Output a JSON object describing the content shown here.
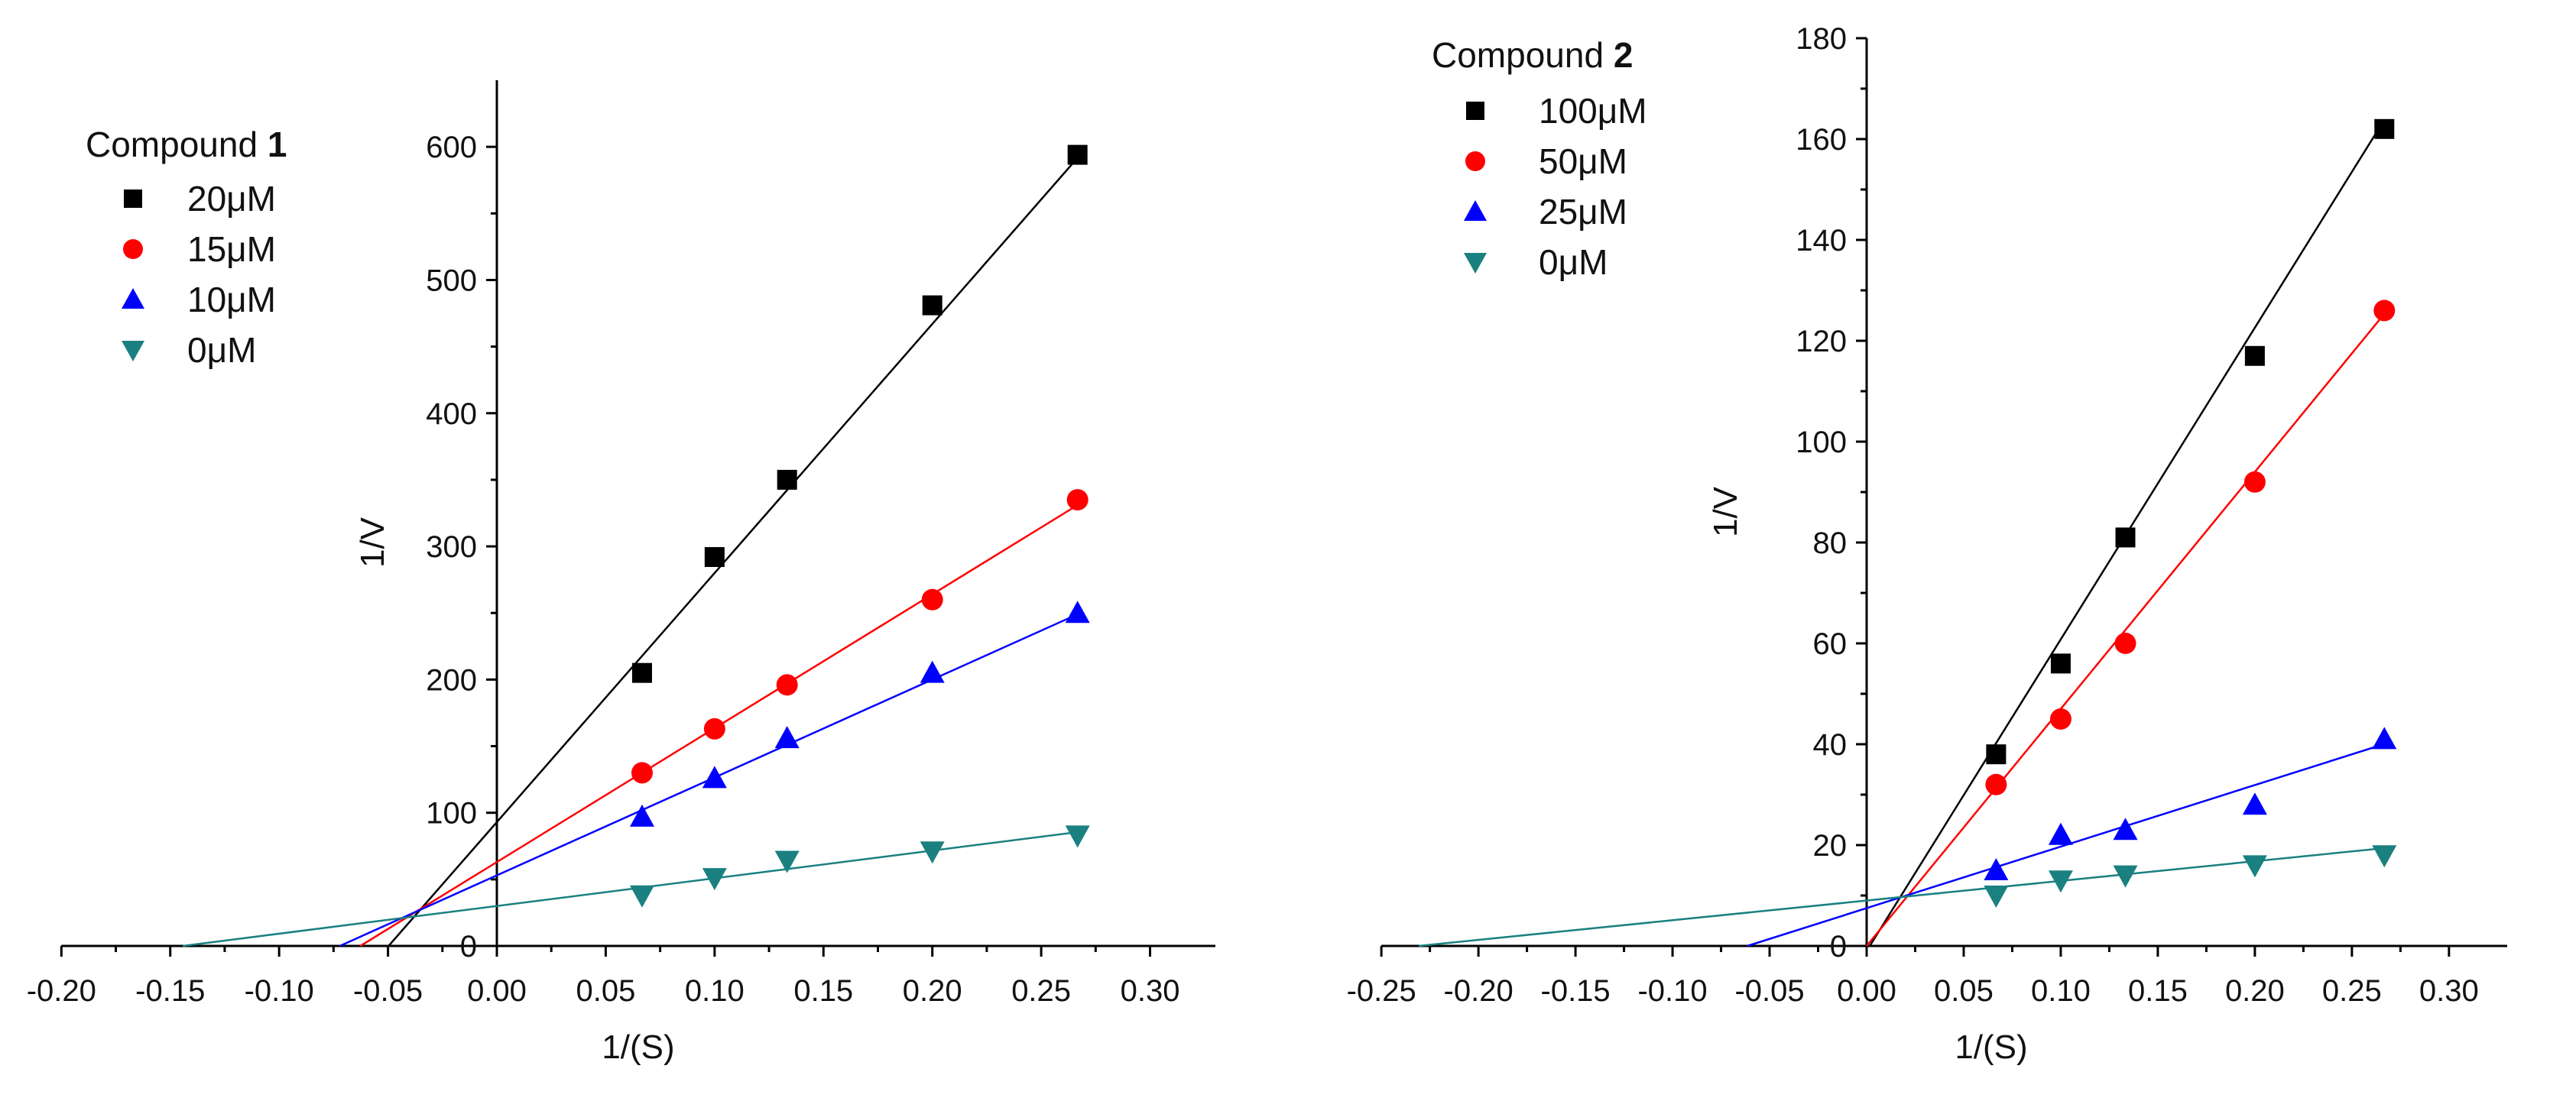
{
  "chart_data": [
    {
      "type": "scatter",
      "title": "",
      "legend_title": "Compound",
      "legend_title_bold": "1",
      "xlabel": "1/(S)",
      "ylabel": "1/V",
      "xlim": [
        -0.2,
        0.33
      ],
      "ylim": [
        0,
        650
      ],
      "xticks": [
        "-0.20",
        "-0.15",
        "-0.10",
        "-0.05",
        "0.00",
        "0.05",
        "0.10",
        "0.15",
        "0.20",
        "0.25",
        "0.30"
      ],
      "yticks": [
        "0",
        "100",
        "200",
        "300",
        "400",
        "500",
        "600"
      ],
      "legend_position": "top-left",
      "x": [
        0.0667,
        0.1,
        0.1333,
        0.2,
        0.2667
      ],
      "series": [
        {
          "name": "20μM",
          "marker": "square",
          "color": "#000000",
          "line_color": "#000000",
          "values": [
            205,
            292,
            350,
            481,
            594
          ],
          "fit": {
            "slope": 1870,
            "intercept": 93
          }
        },
        {
          "name": "15μM",
          "marker": "circle",
          "color": "#ff0000",
          "line_color": "#ff0000",
          "values": [
            130,
            163,
            196,
            260,
            335
          ],
          "fit": {
            "slope": 1005,
            "intercept": 63
          }
        },
        {
          "name": "10μM",
          "marker": "triangle-up",
          "color": "#0000ff",
          "line_color": "#0000ff",
          "values": [
            97,
            126,
            156,
            205,
            250
          ],
          "fit": {
            "slope": 735,
            "intercept": 53
          }
        },
        {
          "name": "0μM",
          "marker": "triangle-down",
          "color": "#1a8080",
          "line_color": "#1a8080",
          "values": [
            38,
            51,
            64,
            71,
            83
          ],
          "fit": {
            "slope": 208,
            "intercept": 30
          }
        }
      ]
    },
    {
      "type": "scatter",
      "title": "",
      "legend_title": "Compound",
      "legend_title_bold": "2",
      "xlabel": "1/(S)",
      "ylabel": "1/V",
      "xlim": [
        -0.25,
        0.33
      ],
      "ylim": [
        0,
        180
      ],
      "xticks": [
        "-0.25",
        "-0.20",
        "-0.15",
        "-0.10",
        "-0.05",
        "0.00",
        "0.05",
        "0.10",
        "0.15",
        "0.20",
        "0.25",
        "0.30"
      ],
      "yticks": [
        "0",
        "20",
        "40",
        "60",
        "80",
        "100",
        "120",
        "140",
        "160",
        "180"
      ],
      "legend_position": "top-left",
      "x": [
        0.0667,
        0.1,
        0.1333,
        0.2,
        0.2667
      ],
      "series": [
        {
          "name": "100μM",
          "marker": "square",
          "color": "#000000",
          "line_color": "#000000",
          "values": [
            38,
            56,
            81,
            117,
            162
          ],
          "fit": {
            "slope": 618,
            "intercept": -1
          }
        },
        {
          "name": "50μM",
          "marker": "circle",
          "color": "#ff0000",
          "line_color": "#ff0000",
          "values": [
            32,
            45,
            60,
            92,
            126
          ],
          "fit": {
            "slope": 470,
            "intercept": 0
          }
        },
        {
          "name": "25μM",
          "marker": "triangle-up",
          "color": "#0000ff",
          "line_color": "#0000ff",
          "values": [
            15,
            22,
            23,
            28,
            41
          ],
          "fit": {
            "slope": 122,
            "intercept": 7.5
          }
        },
        {
          "name": "0μM",
          "marker": "triangle-down",
          "color": "#1a8080",
          "line_color": "#1a8080",
          "values": [
            10,
            13,
            14,
            16,
            18
          ],
          "fit": {
            "slope": 39,
            "intercept": 9
          }
        }
      ]
    }
  ]
}
